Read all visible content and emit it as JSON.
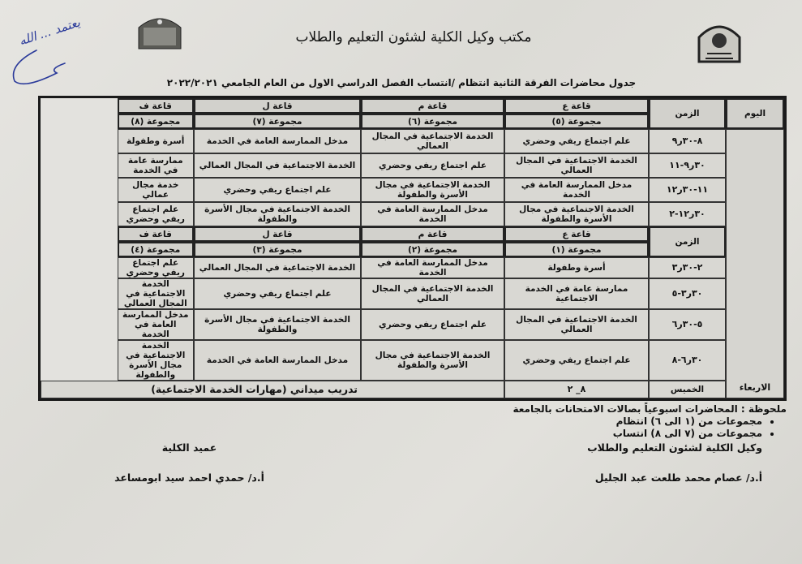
{
  "header": {
    "office_title": "مكتب وكيل الكلية لشئون التعليم والطلاب",
    "doc_title": "جدول محاضرات الفرقة الثانية انتظام /انتساب الفصل الدراسي الاول من العام الجامعي ٢٠٢٢/٢٠٢١"
  },
  "table": {
    "day_header": "اليوم",
    "time_header": "الزمن",
    "wednesday": "الاربعاء",
    "thursday": "الخميس",
    "sections": [
      {
        "rooms": [
          "قاعة ع",
          "قاعة م",
          "قاعة ل",
          "قاعة ف"
        ],
        "groups": [
          "مجموعة (٥)",
          "مجموعة (٦)",
          "مجموعة (٧)",
          "مجموعة (٨)"
        ],
        "rows": [
          {
            "time": "٨-٣٠ر٩",
            "cells": [
              "علم اجتماع ريفي وحضري",
              "الخدمة الاجتماعية في المجال العمالي",
              "مدخل الممارسة العامة في الخدمة",
              "أسرة وطفولة"
            ]
          },
          {
            "time": "٣٠ر٩-١١",
            "cells": [
              "الخدمة الاجتماعية في المجال العمالي",
              "علم اجتماع ريفي وحضري",
              "الخدمة الاجتماعية في المجال العمالي",
              "ممارسة عامة في الخدمة"
            ]
          },
          {
            "time": "١١-٣٠ر١٢",
            "cells": [
              "مدخل الممارسة العامة في الخدمة",
              "الخدمة الاجتماعية في مجال الأسرة والطفولة",
              "علم اجتماع ريفي وحضري",
              "خدمة مجال عمالي"
            ]
          },
          {
            "time": "٣٠ر١٢-٢",
            "cells": [
              "الخدمة الاجتماعية في مجال الأسرة والطفولة",
              "مدخل الممارسة العامة في الخدمة",
              "الخدمة الاجتماعية في مجال الأسرة والطفولة",
              "علم اجتماع ريفي وحضري"
            ]
          }
        ]
      },
      {
        "rooms": [
          "قاعة ع",
          "قاعة م",
          "قاعة ل",
          "قاعة ف"
        ],
        "groups": [
          "مجموعة (١)",
          "مجموعة (٢)",
          "مجموعة (٣)",
          "مجموعة (٤)"
        ],
        "rows": [
          {
            "time": "٢-٣٠ر٣",
            "cells": [
              "أسرة وطفولة",
              "مدخل الممارسة العامة في الخدمة",
              "الخدمة الاجتماعية في المجال العمالي",
              "علم اجتماع ريفي وحضري"
            ]
          },
          {
            "time": "٣٠ر٣-٥",
            "cells": [
              "ممارسة عامة في الخدمة الاجتماعية",
              "الخدمة الاجتماعية في المجال العمالي",
              "علم اجتماع ريفي وحضري",
              "الخدمة الاجتماعية في المجال العمالي"
            ]
          },
          {
            "time": "٥-٣٠ر٦",
            "cells": [
              "الخدمة الاجتماعية في المجال العمالي",
              "علم اجتماع ريفي وحضري",
              "الخدمة الاجتماعية في مجال الأسرة والطفولة",
              "مدخل الممارسة العامة في الخدمة"
            ]
          },
          {
            "time": "٣٠ر٦-٨",
            "cells": [
              "علم اجتماع ريفي وحضري",
              "الخدمة الاجتماعية في مجال الأسرة والطفولة",
              "مدخل الممارسة العامة في الخدمة",
              "الخدمة الاجتماعية في مجال الأسرة والطفولة"
            ]
          }
        ]
      }
    ],
    "thursday_time": "٨_ ٢",
    "thursday_activity": "تدريب ميداني (مهارات الخدمة الاجتماعية)"
  },
  "notes": {
    "title": "ملحوظة : المحاضرات اسبوعياً بصالات الامتحانات بالجامعة",
    "items": [
      "مجموعات من (١ الى ٦) انتظام",
      "مجموعات من (٧ الى ٨) انتساب"
    ]
  },
  "signatures": {
    "vice_dean_title": "وكيل الكلية لشئون التعليم والطلاب",
    "vice_dean_name": "أ.د/ عصام محمد طلعت عبد الجليل",
    "dean_title": "عميد الكلية",
    "dean_name": "أ.د/ حمدي احمد سيد ابومساعد"
  },
  "handwriting": "يعتمد ... الله",
  "colors": {
    "ink": "#111111",
    "signature_ink": "#2a3a9a",
    "paper": "#e2e1dc"
  }
}
